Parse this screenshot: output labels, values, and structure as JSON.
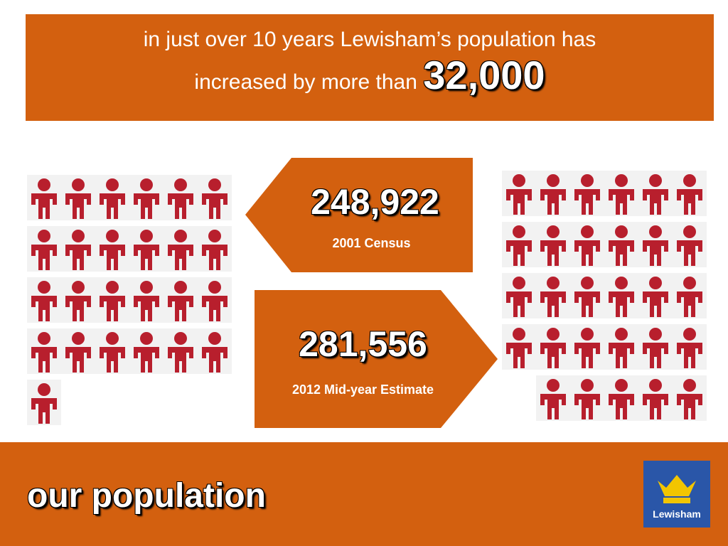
{
  "header": {
    "line1": "in just over 10 years Lewisham’s population has",
    "line2": "increased by more than",
    "highlight": "32,000"
  },
  "census": {
    "number": "248,922",
    "label": "2001 Census"
  },
  "estimate": {
    "number": "281,556",
    "label": "2012 Mid-year Estimate"
  },
  "footer": {
    "title": "our population",
    "logo": "Lewisham"
  }
}
